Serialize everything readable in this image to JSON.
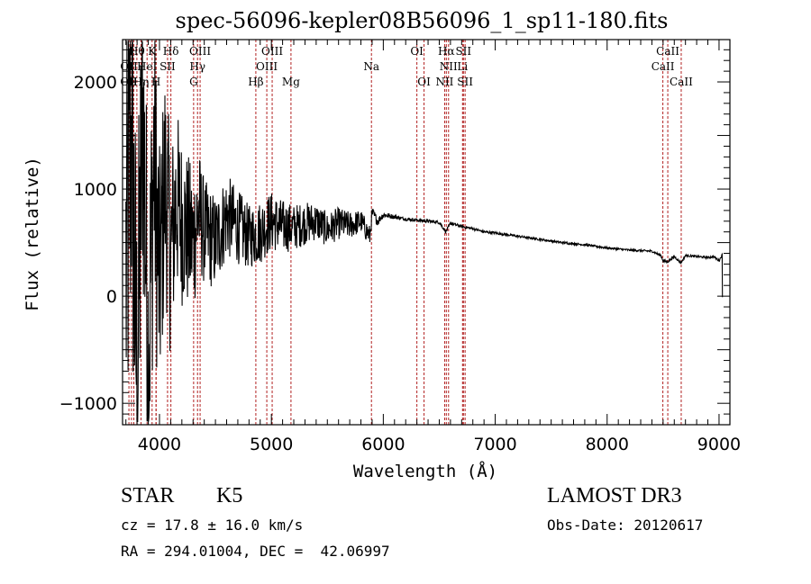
{
  "chart_data": {
    "type": "line",
    "title": "spec-56096-kepler08B56096_1_sp11-180.fits",
    "xlabel": "Wavelength (Å)",
    "ylabel": "Flux (relative)",
    "xlim": [
      3670,
      9097
    ],
    "ylim": [
      -1200,
      2395
    ],
    "grid": false,
    "x_ticks": [
      4000,
      5000,
      6000,
      7000,
      8000,
      9000
    ],
    "x_tick_labels": [
      "4000",
      "5000",
      "6000",
      "7000",
      "8000",
      "9000"
    ],
    "y_ticks": [
      -1000,
      0,
      1000,
      2000
    ],
    "y_tick_labels": [
      "−1000",
      "0",
      "1000",
      "2000"
    ],
    "series": [
      {
        "name": "flux",
        "color": "#000000",
        "envelope_note": "noisy blue end, smooth continuum redward of ~5900 Å",
        "x": [
          3700,
          3750,
          3800,
          3850,
          3900,
          3950,
          4000,
          4050,
          4100,
          4150,
          4200,
          4300,
          4350,
          4400,
          4500,
          4600,
          4700,
          4800,
          4900,
          5000,
          5100,
          5200,
          5300,
          5400,
          5500,
          5600,
          5700,
          5800,
          5880,
          5900,
          5950,
          6000,
          6100,
          6200,
          6300,
          6400,
          6500,
          6560,
          6600,
          6700,
          6800,
          6900,
          7000,
          7200,
          7400,
          7600,
          7800,
          8000,
          8200,
          8400,
          8480,
          8500,
          8540,
          8600,
          8660,
          8700,
          8800,
          8900,
          8950,
          9000,
          9030
        ],
        "y": [
          200,
          1500,
          -900,
          1800,
          -600,
          1300,
          100,
          1100,
          400,
          900,
          700,
          500,
          800,
          600,
          500,
          750,
          650,
          550,
          600,
          700,
          650,
          640,
          680,
          700,
          620,
          680,
          660,
          700,
          560,
          780,
          700,
          760,
          740,
          720,
          710,
          700,
          690,
          600,
          680,
          650,
          630,
          600,
          590,
          560,
          530,
          500,
          480,
          450,
          430,
          420,
          380,
          330,
          320,
          370,
          310,
          380,
          370,
          360,
          370,
          330,
          390
        ],
        "y_noise_amplitude": [
          2200,
          2000,
          1900,
          1800,
          1700,
          1500,
          1300,
          1100,
          1000,
          900,
          800,
          700,
          600,
          500,
          450,
          400,
          350,
          300,
          300,
          280,
          250,
          220,
          200,
          180,
          160,
          150,
          130,
          110,
          100,
          60,
          40,
          30,
          20,
          15,
          15,
          15,
          15,
          15,
          15,
          15,
          12,
          12,
          12,
          10,
          10,
          10,
          10,
          10,
          10,
          10,
          10,
          10,
          10,
          10,
          10,
          10,
          10,
          10,
          10,
          10,
          10
        ]
      }
    ],
    "spectral_lines": [
      {
        "label": "Hθ",
        "wavelength": 3798,
        "row": 1
      },
      {
        "label": "K",
        "wavelength": 3934,
        "row": 1
      },
      {
        "label": "Hδ",
        "wavelength": 4102,
        "row": 1
      },
      {
        "label": "OIII",
        "wavelength": 4363,
        "row": 1
      },
      {
        "label": "OIII",
        "wavelength": 5007,
        "row": 1
      },
      {
        "label": "OI",
        "wavelength": 6300,
        "row": 1
      },
      {
        "label": "Hα",
        "wavelength": 6563,
        "row": 1
      },
      {
        "label": "SII",
        "wavelength": 6716,
        "row": 1
      },
      {
        "label": "CaII",
        "wavelength": 8542,
        "row": 1
      },
      {
        "label": "OII",
        "wavelength": 3727,
        "row": 2
      },
      {
        "label": "HeI",
        "wavelength": 3889,
        "row": 2
      },
      {
        "label": "SII",
        "wavelength": 4072,
        "row": 2
      },
      {
        "label": "Hγ",
        "wavelength": 4340,
        "row": 2
      },
      {
        "label": "OIII",
        "wavelength": 4959,
        "row": 2
      },
      {
        "label": "Na",
        "wavelength": 5894,
        "row": 2
      },
      {
        "label": "NII",
        "wavelength": 6583,
        "row": 2
      },
      {
        "label": "Li",
        "wavelength": 6708,
        "row": 2
      },
      {
        "label": "CaII",
        "wavelength": 8498,
        "row": 2
      },
      {
        "label": "OII",
        "wavelength": 3727,
        "row": 3
      },
      {
        "label": "Hη",
        "wavelength": 3835,
        "row": 3
      },
      {
        "label": "H",
        "wavelength": 3969,
        "row": 3
      },
      {
        "label": "G",
        "wavelength": 4305,
        "row": 3
      },
      {
        "label": "Hβ",
        "wavelength": 4861,
        "row": 3
      },
      {
        "label": "Mg",
        "wavelength": 5175,
        "row": 3
      },
      {
        "label": "OI",
        "wavelength": 6364,
        "row": 3
      },
      {
        "label": "NII",
        "wavelength": 6548,
        "row": 3
      },
      {
        "label": "SII",
        "wavelength": 6731,
        "row": 3
      },
      {
        "label": "CaII",
        "wavelength": 8662,
        "row": 3
      }
    ],
    "extra_line_markers": [
      3750,
      3771,
      3889,
      3970,
      4340,
      4861,
      5007,
      6563,
      6583,
      6716,
      6731
    ],
    "line_marker_color": "#b22222"
  },
  "info": {
    "object_class": "STAR",
    "subclass": "K5",
    "redshift": "cz = 17.8 ± 16.0 km/s",
    "coords": "RA = 294.01004, DEC =  42.06997",
    "survey": "LAMOST DR3",
    "obs_date": "Obs-Date: 20120617"
  }
}
